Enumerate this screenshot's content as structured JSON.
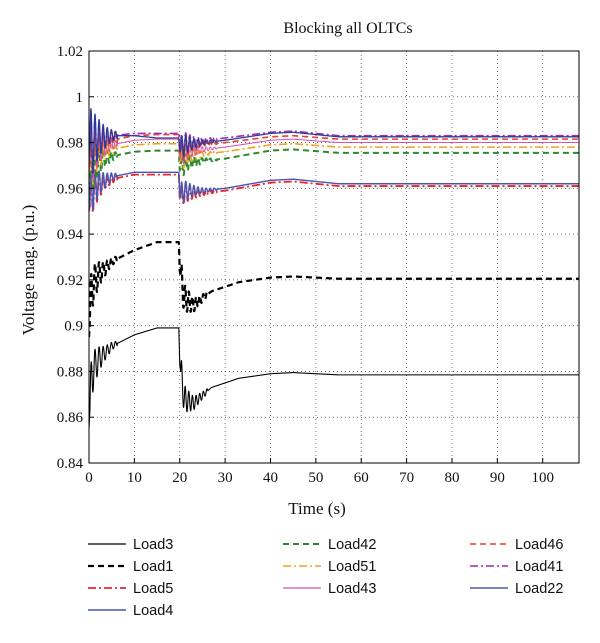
{
  "chart_data": {
    "type": "line",
    "title": "Blocking all OLTCs",
    "xlabel": "Time (s)",
    "ylabel": "Voltage mag. (p.u.)",
    "xlim": [
      0,
      108
    ],
    "ylim": [
      0.84,
      1.02
    ],
    "xticks": [
      0,
      10,
      20,
      30,
      40,
      50,
      60,
      70,
      80,
      90,
      100
    ],
    "yticks": [
      0.84,
      0.86,
      0.88,
      0.9,
      0.92,
      0.94,
      0.96,
      0.98,
      1,
      1.02
    ],
    "xtick_labels": [
      "0",
      "10",
      "20",
      "30",
      "40",
      "50",
      "60",
      "70",
      "80",
      "90",
      "100"
    ],
    "ytick_labels": [
      "0.84",
      "0.86",
      "0.88",
      "0.9",
      "0.92",
      "0.94",
      "0.96",
      "0.98",
      "1",
      "1.02"
    ],
    "grid": true,
    "grid_style": "dotted",
    "legend_position": "below",
    "series": [
      {
        "name": "Load3",
        "color": "#000000",
        "dash": "solid",
        "width": 1.1,
        "x": [
          0,
          0.6,
          2,
          5,
          10,
          15,
          19.8,
          20,
          21,
          23,
          27,
          33,
          40,
          45,
          55,
          70,
          90,
          108
        ],
        "y": [
          0.855,
          0.879,
          0.885,
          0.891,
          0.896,
          0.899,
          0.899,
          0.883,
          0.868,
          0.866,
          0.873,
          0.877,
          0.879,
          0.8795,
          0.8785,
          0.8785,
          0.8785,
          0.8785
        ],
        "osc": [
          [
            0.2,
            6,
            0.012,
            0.9,
            2.5
          ],
          [
            20.2,
            6,
            0.008,
            0.8,
            3
          ]
        ]
      },
      {
        "name": "Load1",
        "color": "#000000",
        "dash": "6,4",
        "width": 2.2,
        "x": [
          0,
          0.6,
          2,
          5,
          10,
          15,
          19.8,
          20,
          21,
          23,
          27,
          33,
          40,
          45,
          55,
          70,
          90,
          108
        ],
        "y": [
          0.895,
          0.917,
          0.922,
          0.928,
          0.933,
          0.9365,
          0.9365,
          0.924,
          0.912,
          0.909,
          0.915,
          0.919,
          0.921,
          0.9215,
          0.9205,
          0.9205,
          0.9205,
          0.9205
        ],
        "osc": [
          [
            0.2,
            6,
            0.012,
            0.9,
            2.5
          ],
          [
            20.2,
            6,
            0.008,
            0.8,
            3
          ]
        ]
      },
      {
        "name": "Load5",
        "color": "#e8242a",
        "dash": "8,3,2,3",
        "width": 1.8,
        "x": [
          0,
          0.6,
          2,
          5,
          10,
          15,
          19.8,
          20,
          21,
          25,
          30,
          40,
          45,
          55,
          70,
          90,
          108
        ],
        "y": [
          0.95,
          0.958,
          0.961,
          0.964,
          0.966,
          0.966,
          0.966,
          0.955,
          0.958,
          0.958,
          0.959,
          0.9625,
          0.963,
          0.961,
          0.961,
          0.961,
          0.961
        ],
        "osc": [
          [
            0.2,
            6,
            0.012,
            0.9,
            2.5
          ],
          [
            20.2,
            8,
            0.006,
            0.9,
            3
          ]
        ]
      },
      {
        "name": "Load4",
        "color": "#4a55b2",
        "dash": "solid",
        "width": 1.4,
        "x": [
          0,
          0.6,
          2,
          5,
          10,
          15,
          19.8,
          20,
          21,
          25,
          30,
          40,
          45,
          55,
          70,
          90,
          108
        ],
        "y": [
          0.951,
          0.959,
          0.962,
          0.965,
          0.967,
          0.967,
          0.967,
          0.956,
          0.959,
          0.959,
          0.96,
          0.9635,
          0.964,
          0.962,
          0.962,
          0.962,
          0.962
        ],
        "osc": [
          [
            0.2,
            6,
            0.012,
            0.9,
            2.5
          ],
          [
            20.2,
            8,
            0.006,
            0.9,
            3
          ]
        ]
      },
      {
        "name": "Load42",
        "color": "#2b8a2b",
        "dash": "6,4",
        "width": 2.0,
        "x": [
          0,
          0.6,
          2,
          5,
          10,
          15,
          19.8,
          20,
          21,
          25,
          30,
          40,
          45,
          55,
          70,
          90,
          108
        ],
        "y": [
          0.965,
          0.97,
          0.972,
          0.974,
          0.976,
          0.9765,
          0.9765,
          0.968,
          0.971,
          0.972,
          0.973,
          0.9765,
          0.977,
          0.9755,
          0.9755,
          0.9755,
          0.9755
        ],
        "osc": [
          [
            0.2,
            6,
            0.014,
            0.9,
            2.5
          ],
          [
            20.2,
            8,
            0.006,
            0.9,
            3
          ]
        ]
      },
      {
        "name": "Load51",
        "color": "#f0a21e",
        "dash": "8,3,2,3",
        "width": 1.6,
        "x": [
          0,
          0.6,
          2,
          5,
          10,
          15,
          19.8,
          20,
          21,
          25,
          30,
          40,
          45,
          55,
          70,
          90,
          108
        ],
        "y": [
          0.967,
          0.972,
          0.975,
          0.977,
          0.979,
          0.9795,
          0.9795,
          0.971,
          0.974,
          0.975,
          0.976,
          0.979,
          0.9795,
          0.978,
          0.978,
          0.978,
          0.978
        ],
        "osc": [
          [
            0.2,
            6,
            0.014,
            0.9,
            2.5
          ],
          [
            20.2,
            8,
            0.006,
            0.9,
            3
          ]
        ]
      },
      {
        "name": "Load43",
        "color": "#d54fb0",
        "dash": "solid",
        "width": 1.0,
        "x": [
          0,
          0.6,
          2,
          5,
          10,
          15,
          19.8,
          20,
          21,
          25,
          30,
          40,
          45,
          55,
          70,
          90,
          108
        ],
        "y": [
          0.968,
          0.974,
          0.977,
          0.979,
          0.981,
          0.9815,
          0.9815,
          0.973,
          0.976,
          0.977,
          0.978,
          0.981,
          0.9815,
          0.98,
          0.98,
          0.98,
          0.98
        ],
        "osc": [
          [
            0.2,
            6,
            0.014,
            0.9,
            2.5
          ],
          [
            20.2,
            8,
            0.006,
            0.9,
            3
          ]
        ]
      },
      {
        "name": "Load46",
        "color": "#ee3b2a",
        "dash": "6,4",
        "width": 1.6,
        "x": [
          0,
          0.6,
          2,
          5,
          10,
          15,
          19.8,
          20,
          21,
          25,
          30,
          40,
          45,
          55,
          70,
          90,
          108
        ],
        "y": [
          0.97,
          0.976,
          0.979,
          0.981,
          0.983,
          0.9835,
          0.9835,
          0.975,
          0.978,
          0.979,
          0.98,
          0.9825,
          0.983,
          0.9815,
          0.9815,
          0.9815,
          0.9815
        ],
        "osc": [
          [
            0.2,
            6,
            0.014,
            0.9,
            2.5
          ],
          [
            20.2,
            8,
            0.006,
            0.9,
            3
          ]
        ]
      },
      {
        "name": "Load41",
        "color": "#9b2fae",
        "dash": "8,3,2,3",
        "width": 1.6,
        "x": [
          0,
          0.6,
          2,
          5,
          10,
          15,
          19.8,
          20,
          21,
          25,
          30,
          40,
          45,
          55,
          70,
          90,
          108
        ],
        "y": [
          0.972,
          0.978,
          0.981,
          0.983,
          0.984,
          0.984,
          0.984,
          0.977,
          0.98,
          0.981,
          0.982,
          0.9845,
          0.985,
          0.983,
          0.983,
          0.983,
          0.983
        ],
        "osc": [
          [
            0.2,
            6,
            0.016,
            0.9,
            2.5
          ],
          [
            20.2,
            8,
            0.006,
            0.9,
            3
          ]
        ]
      },
      {
        "name": "Load22",
        "color": "#2e3a9a",
        "dash": "solid",
        "width": 1.3,
        "x": [
          0,
          0.6,
          2,
          5,
          10,
          15,
          19.8,
          20,
          21,
          25,
          30,
          40,
          45,
          55,
          70,
          90,
          108
        ],
        "y": [
          0.975,
          0.98,
          0.982,
          0.983,
          0.983,
          0.982,
          0.982,
          0.976,
          0.979,
          0.98,
          0.981,
          0.984,
          0.9845,
          0.9825,
          0.9825,
          0.9825,
          0.9825
        ],
        "osc": [
          [
            0.2,
            6,
            0.018,
            0.9,
            2.5
          ],
          [
            20.2,
            8,
            0.006,
            0.9,
            3
          ]
        ]
      }
    ]
  }
}
